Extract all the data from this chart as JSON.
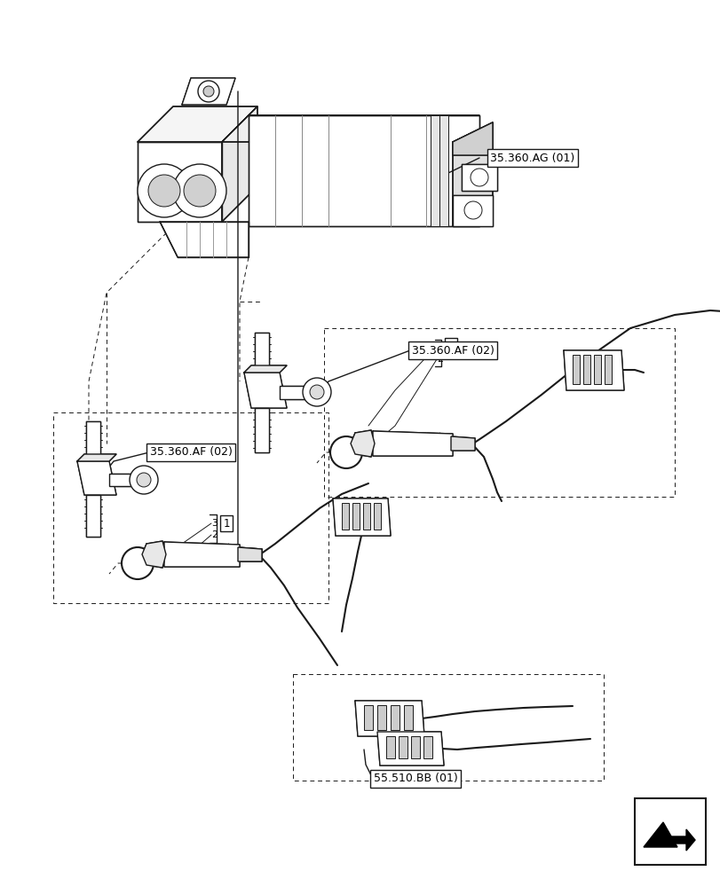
{
  "bg_color": "#ffffff",
  "line_color": "#1a1a1a",
  "labels": {
    "ag01": "35.360.AG (01)",
    "af02_right": "35.360.AF (02)",
    "af02_left": "35.360.AF (02)",
    "bb01": "55.510.BB (01)"
  },
  "figsize": [
    8.12,
    10.0
  ],
  "dpi": 100
}
